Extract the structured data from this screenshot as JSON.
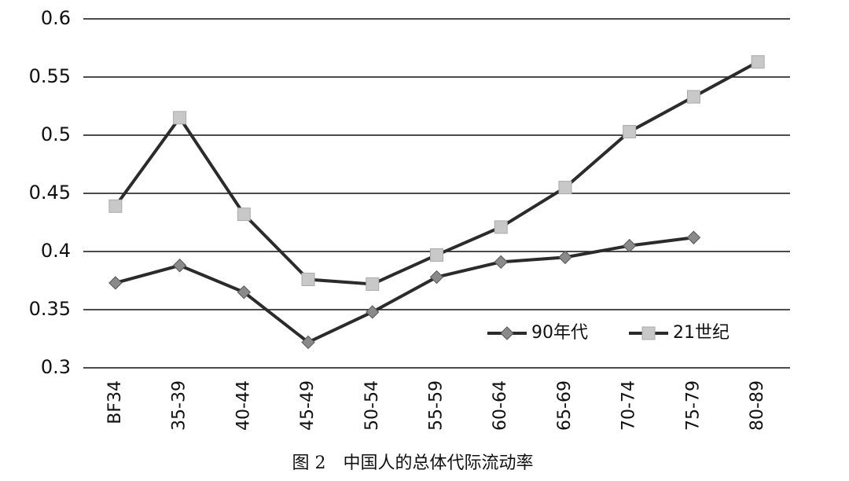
{
  "chart_data": {
    "type": "line",
    "title": "图 2　中国人的总体代际流动率",
    "categories": [
      "BF34",
      "35-39",
      "40-44",
      "45-49",
      "50-54",
      "55-59",
      "60-64",
      "65-69",
      "70-74",
      "75-79",
      "80-89"
    ],
    "series": [
      {
        "name": "90年代",
        "color": "#2b2b2b",
        "marker": "diamond",
        "marker_color": "#8a8a8a",
        "values": [
          0.373,
          0.388,
          0.365,
          0.322,
          0.348,
          0.378,
          0.391,
          0.395,
          0.405,
          0.412,
          null
        ]
      },
      {
        "name": "21世纪",
        "color": "#2b2b2b",
        "marker": "square",
        "marker_color": "#c8c8c8",
        "values": [
          0.439,
          0.515,
          0.432,
          0.376,
          0.372,
          0.397,
          0.421,
          0.455,
          0.503,
          0.533,
          0.563
        ]
      }
    ],
    "ylim": [
      0.3,
      0.6
    ],
    "yticks": [
      0.3,
      0.35,
      0.4,
      0.45,
      0.5,
      0.55,
      0.6
    ],
    "grid": true,
    "legend": "lower right"
  }
}
